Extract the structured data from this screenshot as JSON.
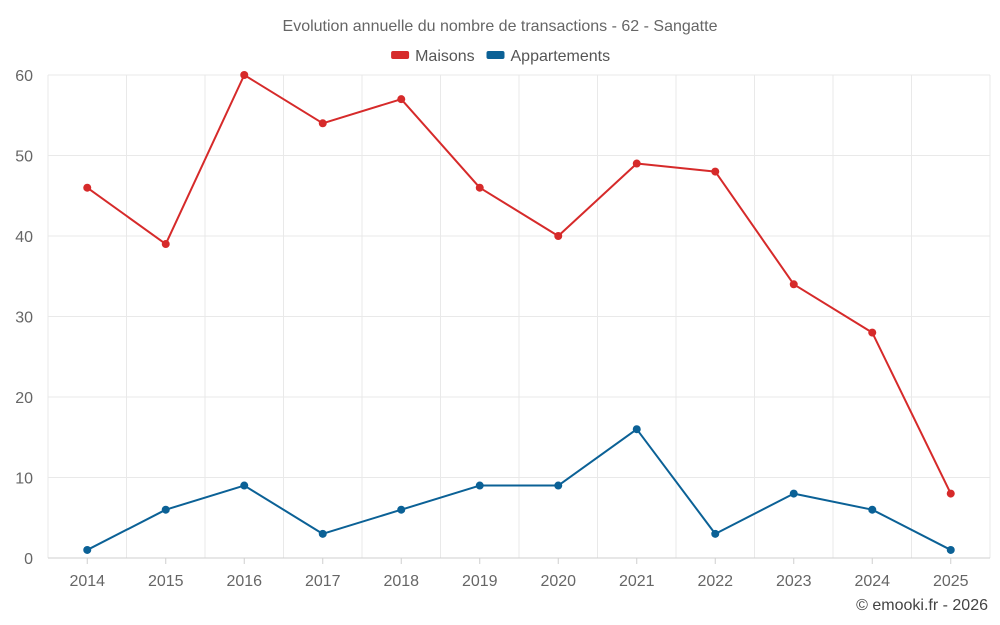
{
  "chart_data": {
    "type": "line",
    "title": "Evolution annuelle du nombre de transactions - 62 - Sangatte",
    "categories": [
      "2014",
      "2015",
      "2016",
      "2017",
      "2018",
      "2019",
      "2020",
      "2021",
      "2022",
      "2023",
      "2024",
      "2025"
    ],
    "series": [
      {
        "name": "Maisons",
        "color": "#d62a2a",
        "values": [
          46,
          39,
          60,
          54,
          57,
          46,
          40,
          49,
          48,
          34,
          28,
          8
        ]
      },
      {
        "name": "Appartements",
        "color": "#0b6196",
        "values": [
          1,
          6,
          9,
          3,
          6,
          9,
          9,
          16,
          3,
          8,
          6,
          1
        ]
      }
    ],
    "ylim": [
      0,
      60
    ],
    "yticks": [
      0,
      10,
      20,
      30,
      40,
      50,
      60
    ],
    "grid": true,
    "legend_position": "top-center",
    "xlabel": "",
    "ylabel": ""
  },
  "credit": "© emooki.fr - 2026"
}
